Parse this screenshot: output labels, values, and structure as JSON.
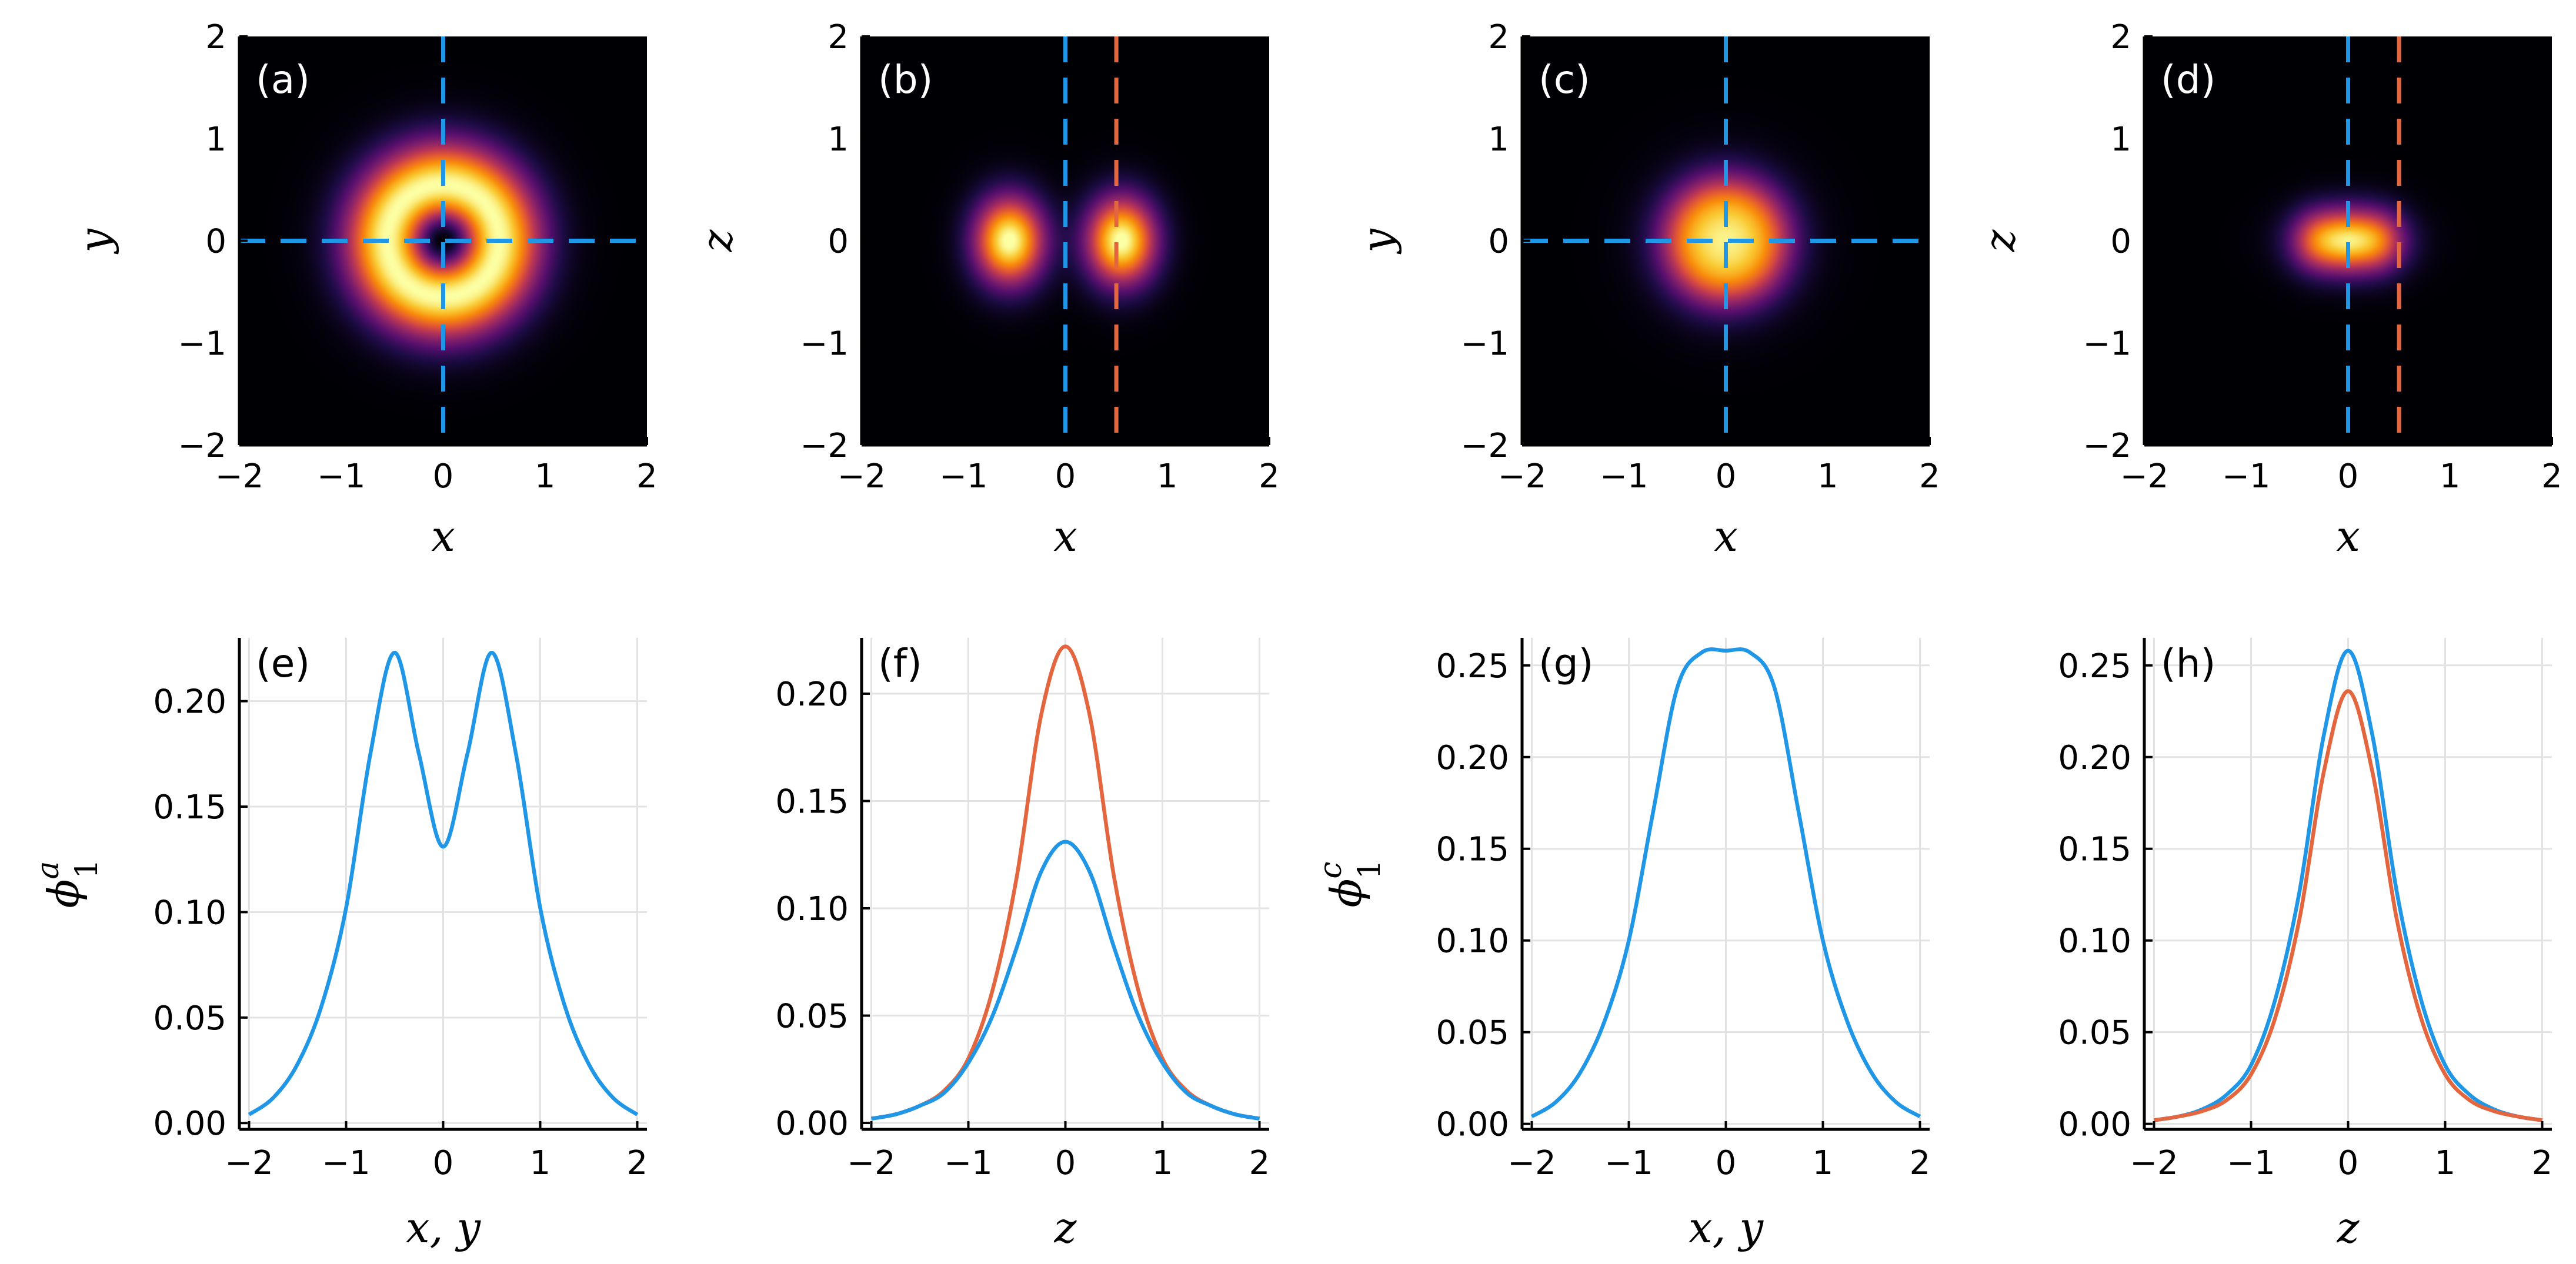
{
  "figure": {
    "description_free": true
  },
  "colors": {
    "blue": "#1f96e6",
    "orange": "#e3663f",
    "grid": "#e3e3e3",
    "axis": "#000000",
    "panel_label_dark": "#ffffff",
    "panel_label_light": "#000000"
  },
  "chart_data": [
    {
      "type": "heatmap",
      "panel": "(a)",
      "title": "",
      "xlabel": "x",
      "ylabel": "y",
      "xlim": [
        -2,
        2
      ],
      "ylim": [
        -2,
        2
      ],
      "xticks": [
        "−2",
        "−1",
        "0",
        "1",
        "2"
      ],
      "yticks": [
        "−2",
        "−1",
        "0",
        "1",
        "2"
      ],
      "field": "ring",
      "ring_radius": 0.55,
      "lines": [
        {
          "orientation": "vertical",
          "at": 0,
          "color": "blue"
        },
        {
          "orientation": "horizontal",
          "at": 0,
          "color": "blue"
        }
      ]
    },
    {
      "type": "heatmap",
      "panel": "(b)",
      "title": "",
      "xlabel": "x",
      "ylabel": "z",
      "xlim": [
        -2,
        2
      ],
      "ylim": [
        -2,
        2
      ],
      "xticks": [
        "−2",
        "−1",
        "0",
        "1",
        "2"
      ],
      "yticks": [
        "−2",
        "−1",
        "0",
        "1",
        "2"
      ],
      "field": "two_lobes",
      "lobe_x": 0.55,
      "lines": [
        {
          "orientation": "vertical",
          "at": 0,
          "color": "blue"
        },
        {
          "orientation": "vertical",
          "at": 0.5,
          "color": "orange"
        }
      ]
    },
    {
      "type": "heatmap",
      "panel": "(c)",
      "title": "",
      "xlabel": "x",
      "ylabel": "y",
      "xlim": [
        -2,
        2
      ],
      "ylim": [
        -2,
        2
      ],
      "xticks": [
        "−2",
        "−1",
        "0",
        "1",
        "2"
      ],
      "yticks": [
        "−2",
        "−1",
        "0",
        "1",
        "2"
      ],
      "field": "flat_disk",
      "disk_radius": 0.55,
      "lines": [
        {
          "orientation": "vertical",
          "at": 0,
          "color": "blue"
        },
        {
          "orientation": "horizontal",
          "at": 0,
          "color": "blue"
        }
      ]
    },
    {
      "type": "heatmap",
      "panel": "(d)",
      "title": "",
      "xlabel": "x",
      "ylabel": "z",
      "xlim": [
        -2,
        2
      ],
      "ylim": [
        -2,
        2
      ],
      "xticks": [
        "−2",
        "−1",
        "0",
        "1",
        "2"
      ],
      "yticks": [
        "−2",
        "−1",
        "0",
        "1",
        "2"
      ],
      "field": "bar",
      "bar_halfwidth": 0.45,
      "lines": [
        {
          "orientation": "vertical",
          "at": 0,
          "color": "blue"
        },
        {
          "orientation": "vertical",
          "at": 0.5,
          "color": "orange"
        }
      ]
    },
    {
      "type": "line",
      "panel": "(e)",
      "title": "",
      "xlabel": "x, y",
      "ylabel": "ϕ",
      "ylabel_sup": "a",
      "ylabel_sub": "1",
      "xlim": [
        -2.1,
        2.1
      ],
      "ylim": [
        -0.003,
        0.23
      ],
      "xticks": [
        -2,
        -1,
        0,
        1,
        2
      ],
      "xtick_labels": [
        "−2",
        "−1",
        "0",
        "1",
        "2"
      ],
      "yticks": [
        0.0,
        0.05,
        0.1,
        0.15,
        0.2
      ],
      "ytick_labels": [
        "0.00",
        "0.05",
        "0.10",
        "0.15",
        "0.20"
      ],
      "series": [
        {
          "name": "blue",
          "color": "blue",
          "x": [
            -2.0,
            -1.75,
            -1.5,
            -1.25,
            -1.0,
            -0.75,
            -0.5,
            -0.25,
            0.0,
            0.25,
            0.5,
            0.75,
            1.0,
            1.25,
            1.5,
            1.75,
            2.0
          ],
          "y": [
            0.004,
            0.012,
            0.028,
            0.056,
            0.102,
            0.175,
            0.223,
            0.175,
            0.131,
            0.175,
            0.223,
            0.175,
            0.102,
            0.056,
            0.028,
            0.012,
            0.004
          ]
        }
      ]
    },
    {
      "type": "line",
      "panel": "(f)",
      "title": "",
      "xlabel": "z",
      "ylabel": "",
      "xlim": [
        -2.1,
        2.1
      ],
      "ylim": [
        -0.003,
        0.226
      ],
      "xticks": [
        -2,
        -1,
        0,
        1,
        2
      ],
      "xtick_labels": [
        "−2",
        "−1",
        "0",
        "1",
        "2"
      ],
      "yticks": [
        0.0,
        0.05,
        0.1,
        0.15,
        0.2
      ],
      "ytick_labels": [
        "0.00",
        "0.05",
        "0.10",
        "0.15",
        "0.20"
      ],
      "series": [
        {
          "name": "orange",
          "color": "orange",
          "x": [
            -2.0,
            -1.75,
            -1.5,
            -1.25,
            -1.0,
            -0.75,
            -0.5,
            -0.25,
            0.0,
            0.25,
            0.5,
            0.75,
            1.0,
            1.25,
            1.5,
            1.75,
            2.0
          ],
          "y": [
            0.002,
            0.004,
            0.008,
            0.015,
            0.03,
            0.062,
            0.115,
            0.19,
            0.222,
            0.19,
            0.115,
            0.062,
            0.03,
            0.015,
            0.008,
            0.004,
            0.002
          ]
        },
        {
          "name": "blue",
          "color": "blue",
          "x": [
            -2.0,
            -1.75,
            -1.5,
            -1.25,
            -1.0,
            -0.75,
            -0.5,
            -0.25,
            0.0,
            0.25,
            0.5,
            0.75,
            1.0,
            1.25,
            1.5,
            1.75,
            2.0
          ],
          "y": [
            0.002,
            0.004,
            0.008,
            0.014,
            0.028,
            0.05,
            0.082,
            0.117,
            0.131,
            0.117,
            0.082,
            0.05,
            0.028,
            0.014,
            0.008,
            0.004,
            0.002
          ]
        }
      ]
    },
    {
      "type": "line",
      "panel": "(g)",
      "title": "",
      "xlabel": "x, y",
      "ylabel": "ϕ",
      "ylabel_sup": "c",
      "ylabel_sub": "1",
      "xlim": [
        -2.1,
        2.1
      ],
      "ylim": [
        -0.003,
        0.265
      ],
      "xticks": [
        -2,
        -1,
        0,
        1,
        2
      ],
      "xtick_labels": [
        "−2",
        "−1",
        "0",
        "1",
        "2"
      ],
      "yticks": [
        0.0,
        0.05,
        0.1,
        0.15,
        0.2,
        0.25
      ],
      "ytick_labels": [
        "0.00",
        "0.05",
        "0.10",
        "0.15",
        "0.20",
        "0.25"
      ],
      "series": [
        {
          "name": "blue",
          "color": "blue",
          "x": [
            -2.0,
            -1.75,
            -1.5,
            -1.25,
            -1.0,
            -0.75,
            -0.5,
            -0.25,
            0.0,
            0.25,
            0.5,
            0.75,
            1.0,
            1.25,
            1.5,
            1.75,
            2.0
          ],
          "y": [
            0.004,
            0.012,
            0.028,
            0.056,
            0.1,
            0.17,
            0.238,
            0.257,
            0.258,
            0.257,
            0.238,
            0.17,
            0.1,
            0.056,
            0.028,
            0.012,
            0.004
          ]
        }
      ]
    },
    {
      "type": "line",
      "panel": "(h)",
      "title": "",
      "xlabel": "z",
      "ylabel": "",
      "xlim": [
        -2.1,
        2.1
      ],
      "ylim": [
        -0.003,
        0.265
      ],
      "xticks": [
        -2,
        -1,
        0,
        1,
        2
      ],
      "xtick_labels": [
        "−2",
        "−1",
        "0",
        "1",
        "2"
      ],
      "yticks": [
        0.0,
        0.05,
        0.1,
        0.15,
        0.2,
        0.25
      ],
      "ytick_labels": [
        "0.00",
        "0.05",
        "0.10",
        "0.15",
        "0.20",
        "0.25"
      ],
      "series": [
        {
          "name": "blue",
          "color": "blue",
          "x": [
            -2.0,
            -1.75,
            -1.5,
            -1.25,
            -1.0,
            -0.75,
            -0.5,
            -0.25,
            0.0,
            0.25,
            0.5,
            0.75,
            1.0,
            1.25,
            1.5,
            1.75,
            2.0
          ],
          "y": [
            0.002,
            0.004,
            0.008,
            0.016,
            0.032,
            0.068,
            0.127,
            0.212,
            0.258,
            0.212,
            0.127,
            0.068,
            0.032,
            0.016,
            0.008,
            0.004,
            0.002
          ]
        },
        {
          "name": "orange",
          "color": "orange",
          "x": [
            -2.0,
            -1.75,
            -1.5,
            -1.25,
            -1.0,
            -0.75,
            -0.5,
            -0.25,
            0.0,
            0.25,
            0.5,
            0.75,
            1.0,
            1.25,
            1.5,
            1.75,
            2.0
          ],
          "y": [
            0.002,
            0.004,
            0.007,
            0.013,
            0.027,
            0.058,
            0.112,
            0.192,
            0.236,
            0.192,
            0.112,
            0.058,
            0.027,
            0.013,
            0.007,
            0.004,
            0.002
          ]
        }
      ]
    }
  ]
}
